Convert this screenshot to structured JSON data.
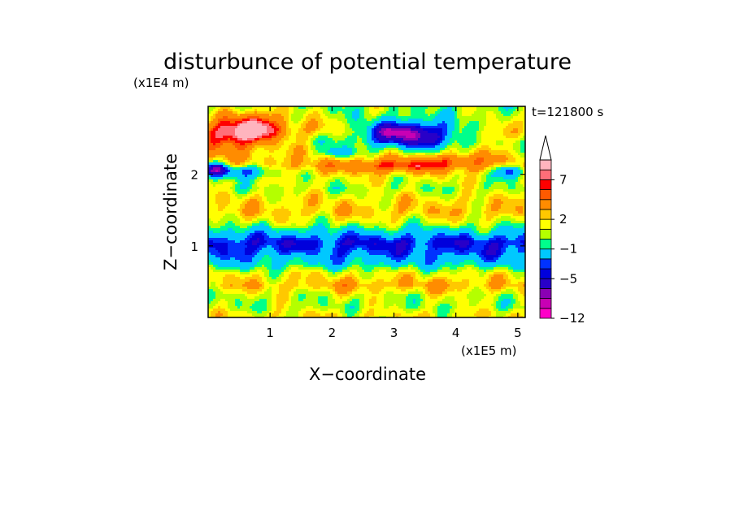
{
  "chart_data": {
    "type": "heatmap",
    "title": "disturbunce of potential temperature",
    "xlabel": "X−coordinate",
    "ylabel": "Z−coordinate",
    "x_unit": "(x1E5 m)",
    "y_unit": "(x1E4 m)",
    "time_label": "t=121800 s",
    "xlim": [
      0,
      5.12
    ],
    "ylim": [
      0,
      2.95
    ],
    "x_ticks": [
      "1",
      "2",
      "3",
      "4",
      "5"
    ],
    "y_ticks": [
      "1",
      "2"
    ],
    "x_tick_values": [
      1,
      2,
      3,
      4,
      5
    ],
    "y_tick_values": [
      1,
      2
    ],
    "colorbar": {
      "levels": [
        -12,
        -10,
        -8,
        -7,
        -5,
        -4,
        -3,
        -1,
        0,
        1,
        2,
        3,
        5,
        6,
        7,
        8,
        9
      ],
      "labels": [
        "−12",
        "−5",
        "−1",
        "2",
        "7"
      ],
      "label_values": [
        -12,
        -5,
        -1,
        2,
        7
      ],
      "colors": [
        "#ff00c8",
        "#c800b4",
        "#8a00b4",
        "#2800c8",
        "#0000dc",
        "#0032ff",
        "#00c8ff",
        "#00ff8c",
        "#b4ff00",
        "#ffff00",
        "#ffc800",
        "#ff8c00",
        "#ff5a00",
        "#ff0000",
        "#ff6e78",
        "#ffb4be"
      ],
      "extend": "max"
    },
    "bands": [
      {
        "z": 0.05,
        "value": 1.5
      },
      {
        "z": 0.15,
        "value": 0.5
      },
      {
        "z": 0.3,
        "value": 0.8
      },
      {
        "z": 0.45,
        "value": 2.5
      },
      {
        "z": 0.62,
        "value": 1.2
      },
      {
        "z": 0.75,
        "value": -1.5
      },
      {
        "z": 0.9,
        "value": -3.5
      },
      {
        "z": 1.05,
        "value": -4.5
      },
      {
        "z": 1.18,
        "value": -2.0
      },
      {
        "z": 1.32,
        "value": 0.8
      },
      {
        "z": 1.48,
        "value": 2.5
      },
      {
        "z": 1.65,
        "value": 1.8
      },
      {
        "z": 1.8,
        "value": 0.5
      },
      {
        "z": 1.98,
        "value": 1.5
      },
      {
        "z": 2.12,
        "value": 3.5
      },
      {
        "z": 2.28,
        "value": 2.0
      },
      {
        "z": 2.45,
        "value": 0.5
      },
      {
        "z": 2.6,
        "value": 1.0
      },
      {
        "z": 2.8,
        "value": 0.5
      },
      {
        "z": 2.95,
        "value": 0.3
      }
    ],
    "features": [
      {
        "x": 0.75,
        "z": 2.65,
        "sx": 0.55,
        "sz": 0.22,
        "amp": 7.5
      },
      {
        "x": 0.25,
        "z": 2.5,
        "sx": 0.45,
        "sz": 0.2,
        "amp": 5.0
      },
      {
        "x": 0.55,
        "z": 2.05,
        "sx": 0.55,
        "sz": 0.1,
        "amp": -5.5
      },
      {
        "x": 0.1,
        "z": 2.08,
        "sx": 0.2,
        "sz": 0.1,
        "amp": -7.0
      },
      {
        "x": 3.3,
        "z": 2.55,
        "sx": 0.75,
        "sz": 0.2,
        "amp": -7.5
      },
      {
        "x": 3.0,
        "z": 2.6,
        "sx": 0.35,
        "sz": 0.1,
        "amp": -3.0
      },
      {
        "x": 3.05,
        "z": 2.12,
        "sx": 0.7,
        "sz": 0.1,
        "amp": 3.0
      },
      {
        "x": 4.0,
        "z": 2.2,
        "sx": 0.55,
        "sz": 0.1,
        "amp": 2.5
      },
      {
        "x": 2.1,
        "z": 2.3,
        "sx": 0.25,
        "sz": 0.08,
        "amp": -4.5
      },
      {
        "x": 4.85,
        "z": 2.05,
        "sx": 0.25,
        "sz": 0.1,
        "amp": -6.0
      },
      {
        "x": 4.55,
        "z": 2.55,
        "sx": 0.4,
        "sz": 0.15,
        "amp": 2.0
      },
      {
        "x": 1.8,
        "z": 2.65,
        "sx": 0.35,
        "sz": 0.12,
        "amp": 1.5
      },
      {
        "x": 2.4,
        "z": 0.45,
        "sx": 0.45,
        "sz": 0.12,
        "amp": 1.0
      },
      {
        "x": 3.8,
        "z": 0.45,
        "sx": 0.45,
        "sz": 0.12,
        "amp": 1.0
      },
      {
        "x": 1.5,
        "z": 0.85,
        "sx": 0.3,
        "sz": 0.1,
        "amp": 1.5
      }
    ]
  }
}
